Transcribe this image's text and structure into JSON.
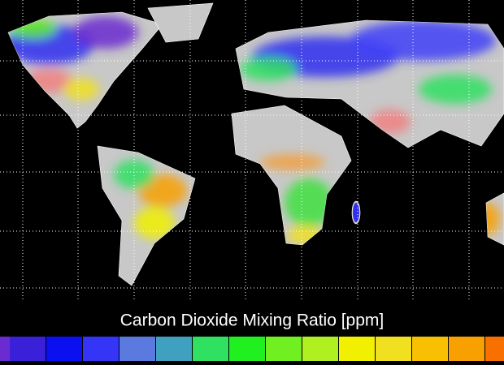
{
  "title": "Carbon Dioxide Mixing Ratio [ppm]"
}
